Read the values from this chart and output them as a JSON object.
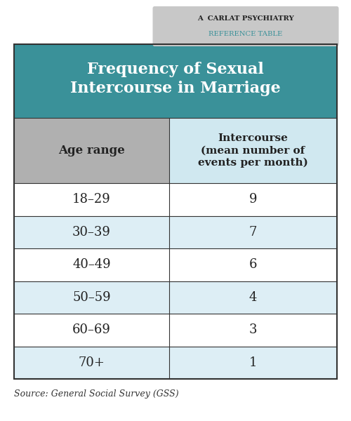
{
  "title_line1": "Frequency of Sexual",
  "title_line2": "Intercourse in Marriage",
  "title_bg_color": "#3a9199",
  "title_text_color": "#ffffff",
  "header_col1": "Age range",
  "header_col2": "Intercourse\n(mean number of\nevents per month)",
  "header_bg_color": "#b0b0b0",
  "header_col2_bg_color": "#d0e8f0",
  "rows": [
    {
      "age": "18–29",
      "value": "9",
      "bg": "#ffffff"
    },
    {
      "age": "30–39",
      "value": "7",
      "bg": "#ddeef5"
    },
    {
      "age": "40–49",
      "value": "6",
      "bg": "#ffffff"
    },
    {
      "age": "50–59",
      "value": "4",
      "bg": "#ddeef5"
    },
    {
      "age": "60–69",
      "value": "3",
      "bg": "#ffffff"
    },
    {
      "age": "70+",
      "value": "1",
      "bg": "#ddeef5"
    }
  ],
  "source_text": "Source: General Social Survey (GSS)",
  "watermark_line1": "A  CARLAT PSYCHIATRY",
  "watermark_line2": "REFERENCE TABLE",
  "watermark_bg": "#c8c8c8",
  "watermark_text_color1": "#222222",
  "watermark_text_color2": "#3a9199",
  "outer_bg": "#ffffff",
  "border_color": "#333333",
  "fig_width": 5.0,
  "fig_height": 6.0
}
